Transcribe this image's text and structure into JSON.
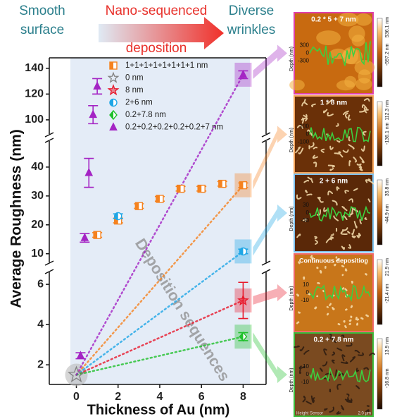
{
  "chart_data": {
    "type": "scatter",
    "header": {
      "left": [
        "Smooth",
        "surface"
      ],
      "middle_top": "Nano-sequenced",
      "middle_bottom": "deposition",
      "right": [
        "Diverse",
        "wrinkles"
      ]
    },
    "x_label": "Thickness of Au (nm)",
    "y_label": "Average Roughness (nm)",
    "annotation": "Deposition sequences",
    "xlim": [
      -1.3,
      9.1
    ],
    "xticks": [
      0,
      2,
      4,
      6,
      8
    ],
    "y_segments": [
      {
        "ylim": [
          1.2,
          6.6
        ],
        "yticks": [
          2,
          4,
          6
        ]
      },
      {
        "ylim": [
          7,
          49
        ],
        "yticks": [
          10,
          20,
          30,
          40
        ]
      },
      {
        "ylim": [
          89,
          147
        ],
        "yticks": [
          100,
          120,
          140
        ]
      }
    ],
    "series": [
      {
        "name": "1+1+1+1+1+1+1+1 nm",
        "color": "#f5821f",
        "marker": "square-half",
        "x": [
          1,
          2,
          3,
          4,
          5,
          6,
          7,
          8
        ],
        "values": [
          16.5,
          21.5,
          26.5,
          29,
          32.5,
          32.5,
          34.2,
          33.7
        ],
        "errors": [
          0.8,
          0.8,
          0.8,
          0.8,
          0.8,
          0.8,
          0.8,
          0.8
        ]
      },
      {
        "name": "0 nm",
        "color": "#808080",
        "marker": "star-open",
        "x": [
          0
        ],
        "values": [
          1.5
        ]
      },
      {
        "name": "8 nm",
        "color": "#e8192c",
        "marker": "star-half",
        "x": [
          8
        ],
        "values": [
          5.2
        ],
        "errors": [
          0.9
        ]
      },
      {
        "name": "2+6 nm",
        "color": "#1ea6e6",
        "marker": "circle-half",
        "x": [
          2,
          8
        ],
        "values": [
          23,
          10.8
        ],
        "errors": [
          0.8,
          0.8
        ]
      },
      {
        "name": "0.2+7.8 nm",
        "color": "#1fc02a",
        "marker": "diamond-half",
        "x": [
          8
        ],
        "values": [
          3.4
        ],
        "errors": [
          0.2
        ]
      },
      {
        "name": "0.2+0.2+0.2+0.2+0.2+7 nm",
        "color": "#a424c4",
        "marker": "triangle",
        "x": [
          0.2,
          0.4,
          0.6,
          0.8,
          1,
          8
        ],
        "values": [
          2.45,
          15.5,
          38,
          104,
          126,
          135
        ],
        "errors": [
          0.15,
          1.5,
          5,
          7,
          6,
          3
        ]
      }
    ]
  },
  "panels": [
    {
      "title": "0.2 * 5 + 7 nm",
      "scale_max": "536.1 nm",
      "scale_min": "-597.2 nm",
      "depth_ticks": [
        "300",
        "0",
        "-300"
      ],
      "depth_label": "Depth (nm)"
    },
    {
      "title": "1 * 8 nm",
      "scale_max": "112.3 nm",
      "scale_min": "-136.1 nm",
      "depth_ticks": [
        "100",
        "0",
        "-100"
      ],
      "depth_label": "Depth (nm)"
    },
    {
      "title": "2 + 6 nm",
      "scale_max": "35.8 nm",
      "scale_min": "-44.9 nm",
      "depth_ticks": [
        "30",
        "0",
        "-30"
      ],
      "depth_label": "Depth (nm)"
    },
    {
      "title": "Continuous deposition",
      "scale_max": "21.9 nm",
      "scale_min": "-21.4 nm",
      "depth_ticks": [
        "10",
        "0",
        "-10"
      ],
      "depth_label": "Depth (nm)"
    },
    {
      "title": "0.2 + 7.8 nm",
      "scale_max": "13.9 nm",
      "scale_min": "-16.8 nm",
      "depth_ticks": [
        "10",
        "0",
        "-10"
      ],
      "depth_label": "Depth (nm)",
      "footer_left": "Height Sensor",
      "footer_right": "2.0 µm"
    }
  ]
}
